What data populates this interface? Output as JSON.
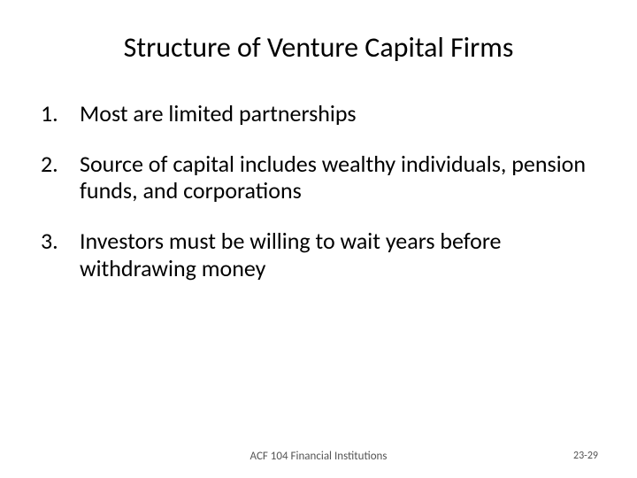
{
  "slide": {
    "title": "Structure of Venture Capital Firms",
    "title_fontsize": 32,
    "body_fontsize": 26,
    "background_color": "#ffffff",
    "text_color": "#000000",
    "items": [
      {
        "number": "1.",
        "text": "Most are limited partnerships"
      },
      {
        "number": "2.",
        "text": "Source of capital includes wealthy individuals, pension funds, and corporations"
      },
      {
        "number": "3.",
        "text": "Investors must be willing to wait years before withdrawing money"
      }
    ]
  },
  "footer": {
    "center": "ACF 104 Financial Institutions",
    "right": "23-29",
    "fontsize": 12,
    "color": "#555555"
  }
}
